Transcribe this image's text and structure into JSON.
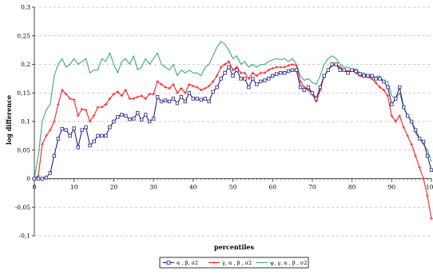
{
  "chart_data": {
    "type": "line",
    "title": "",
    "xlabel": "percentiles",
    "ylabel": "log difference",
    "xlim": [
      0,
      100
    ],
    "ylim": [
      -0.1,
      0.3
    ],
    "x_ticks": [
      0,
      10,
      20,
      30,
      40,
      50,
      60,
      70,
      80,
      90,
      100
    ],
    "y_ticks": [
      -0.1,
      -0.05,
      0,
      0.05,
      0.1,
      0.15,
      0.2,
      0.25,
      0.3
    ],
    "y_tick_labels": [
      "-0,1",
      "-0,05",
      "0",
      "0,05",
      "0,1",
      "0,15",
      "0,2",
      "0,25",
      "0,3"
    ],
    "grid": "horizontal dashed",
    "legend_position": "bottom-center",
    "series": [
      {
        "name": "α , β, σ2",
        "color": "#1f1f8f",
        "marker": "square",
        "x": [
          0,
          1,
          2,
          3,
          4,
          5,
          6,
          7,
          8,
          9,
          10,
          11,
          12,
          13,
          14,
          15,
          16,
          17,
          18,
          19,
          20,
          21,
          22,
          23,
          24,
          25,
          26,
          27,
          28,
          29,
          30,
          31,
          32,
          33,
          34,
          35,
          36,
          37,
          38,
          39,
          40,
          41,
          42,
          43,
          44,
          45,
          46,
          47,
          48,
          49,
          50,
          51,
          52,
          53,
          54,
          55,
          56,
          57,
          58,
          59,
          60,
          61,
          62,
          63,
          64,
          65,
          66,
          67,
          68,
          69,
          70,
          71,
          72,
          73,
          74,
          75,
          76,
          77,
          78,
          79,
          80,
          81,
          82,
          83,
          84,
          85,
          86,
          87,
          88,
          89,
          90,
          91,
          92,
          93,
          94,
          95,
          96,
          97,
          98,
          99,
          100
        ],
        "values": [
          0,
          0,
          0,
          0.002,
          0.01,
          0.04,
          0.07,
          0.087,
          0.085,
          0.075,
          0.088,
          0.055,
          0.085,
          0.09,
          0.058,
          0.065,
          0.075,
          0.075,
          0.075,
          0.09,
          0.1,
          0.108,
          0.112,
          0.11,
          0.104,
          0.105,
          0.115,
          0.103,
          0.112,
          0.1,
          0.105,
          0.143,
          0.135,
          0.137,
          0.135,
          0.14,
          0.132,
          0.143,
          0.135,
          0.15,
          0.14,
          0.14,
          0.138,
          0.14,
          0.135,
          0.152,
          0.16,
          0.175,
          0.185,
          0.195,
          0.18,
          0.19,
          0.175,
          0.175,
          0.16,
          0.175,
          0.165,
          0.17,
          0.172,
          0.175,
          0.18,
          0.183,
          0.185,
          0.185,
          0.188,
          0.19,
          0.19,
          0.16,
          0.155,
          0.16,
          0.15,
          0.14,
          0.16,
          0.18,
          0.19,
          0.2,
          0.2,
          0.19,
          0.19,
          0.185,
          0.19,
          0.188,
          0.183,
          0.18,
          0.18,
          0.18,
          0.175,
          0.175,
          0.17,
          0.16,
          0.13,
          0.14,
          0.16,
          0.125,
          0.11,
          0.1,
          0.085,
          0.07,
          0.065,
          0.04,
          0.015
        ]
      },
      {
        "name": "γ, α , β , σ2",
        "color": "#ff2020",
        "marker": "cross",
        "x": [
          0,
          1,
          2,
          3,
          4,
          5,
          6,
          7,
          8,
          9,
          10,
          11,
          12,
          13,
          14,
          15,
          16,
          17,
          18,
          19,
          20,
          21,
          22,
          23,
          24,
          25,
          26,
          27,
          28,
          29,
          30,
          31,
          32,
          33,
          34,
          35,
          36,
          37,
          38,
          39,
          40,
          41,
          42,
          43,
          44,
          45,
          46,
          47,
          48,
          49,
          50,
          51,
          52,
          53,
          54,
          55,
          56,
          57,
          58,
          59,
          60,
          61,
          62,
          63,
          64,
          65,
          66,
          67,
          68,
          69,
          70,
          71,
          72,
          73,
          74,
          75,
          76,
          77,
          78,
          79,
          80,
          81,
          82,
          83,
          84,
          85,
          86,
          87,
          88,
          89,
          90,
          91,
          92,
          93,
          94,
          95,
          96,
          97,
          98,
          99,
          100
        ],
        "values": [
          0,
          0.005,
          0.06,
          0.075,
          0.085,
          0.1,
          0.13,
          0.155,
          0.148,
          0.14,
          0.138,
          0.11,
          0.122,
          0.12,
          0.1,
          0.11,
          0.125,
          0.125,
          0.13,
          0.14,
          0.148,
          0.152,
          0.145,
          0.155,
          0.14,
          0.14,
          0.143,
          0.145,
          0.14,
          0.148,
          0.148,
          0.17,
          0.165,
          0.16,
          0.158,
          0.165,
          0.15,
          0.158,
          0.15,
          0.165,
          0.162,
          0.16,
          0.155,
          0.158,
          0.162,
          0.17,
          0.18,
          0.195,
          0.2,
          0.205,
          0.19,
          0.195,
          0.185,
          0.185,
          0.175,
          0.185,
          0.18,
          0.185,
          0.185,
          0.19,
          0.193,
          0.195,
          0.195,
          0.195,
          0.198,
          0.2,
          0.198,
          0.17,
          0.16,
          0.155,
          0.148,
          0.135,
          0.155,
          0.18,
          0.19,
          0.198,
          0.2,
          0.195,
          0.19,
          0.188,
          0.19,
          0.185,
          0.18,
          0.178,
          0.178,
          0.175,
          0.168,
          0.16,
          0.155,
          0.145,
          0.11,
          0.1,
          0.11,
          0.09,
          0.075,
          0.06,
          0.04,
          0.02,
          0,
          -0.03,
          -0.07
        ]
      },
      {
        "name": "ψ, γ, α , β , σ2",
        "color": "#3aaa78",
        "marker": "none",
        "x": [
          0,
          1,
          2,
          3,
          4,
          5,
          6,
          7,
          8,
          9,
          10,
          11,
          12,
          13,
          14,
          15,
          16,
          17,
          18,
          19,
          20,
          21,
          22,
          23,
          24,
          25,
          26,
          27,
          28,
          29,
          30,
          31,
          32,
          33,
          34,
          35,
          36,
          37,
          38,
          39,
          40,
          41,
          42,
          43,
          44,
          45,
          46,
          47,
          48,
          49,
          50,
          51,
          52,
          53,
          54,
          55,
          56,
          57,
          58,
          59,
          60,
          61,
          62,
          63,
          64,
          65,
          66,
          67,
          68,
          69,
          70,
          71,
          72,
          73,
          74,
          75,
          76,
          77,
          78,
          79,
          80,
          81,
          82,
          83,
          84,
          85,
          86,
          87,
          88,
          89,
          90,
          91,
          92,
          93,
          94,
          95,
          96,
          97,
          98,
          99,
          100
        ],
        "values": [
          0,
          0.04,
          0.1,
          0.12,
          0.13,
          0.18,
          0.2,
          0.21,
          0.195,
          0.2,
          0.21,
          0.2,
          0.205,
          0.21,
          0.185,
          0.19,
          0.19,
          0.21,
          0.205,
          0.22,
          0.2,
          0.185,
          0.205,
          0.21,
          0.2,
          0.215,
          0.19,
          0.195,
          0.21,
          0.2,
          0.21,
          0.22,
          0.2,
          0.195,
          0.19,
          0.2,
          0.18,
          0.19,
          0.185,
          0.19,
          0.185,
          0.185,
          0.18,
          0.195,
          0.2,
          0.215,
          0.23,
          0.24,
          0.235,
          0.225,
          0.21,
          0.215,
          0.2,
          0.205,
          0.195,
          0.2,
          0.195,
          0.2,
          0.2,
          0.205,
          0.208,
          0.21,
          0.208,
          0.21,
          0.205,
          0.21,
          0.2,
          0.18,
          0.172,
          0.175,
          0.168,
          0.165,
          0.18,
          0.2,
          0.21,
          0.215,
          0.21,
          0.2,
          0.195,
          0.195,
          0.19,
          0.192,
          0.185,
          0.185,
          0.18,
          0.178,
          0.178,
          0.18,
          0.17,
          0.17,
          0.145,
          0.14,
          0.15,
          0.125,
          0.11,
          0.1,
          0.08,
          0.07,
          0.06,
          0.05,
          0.03
        ]
      }
    ]
  }
}
